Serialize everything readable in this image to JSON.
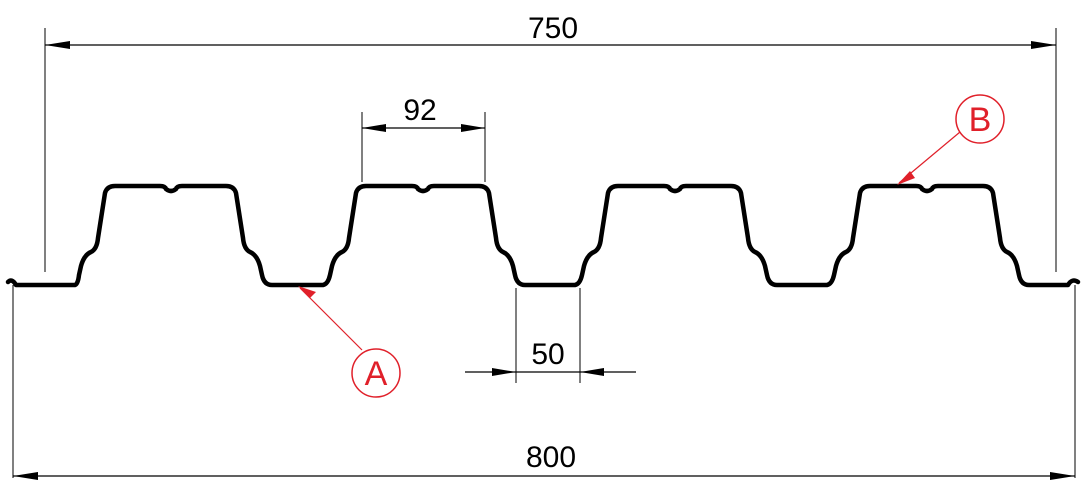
{
  "dimensions": {
    "top_width": "750",
    "total_width": "800",
    "rib_top": "92",
    "trough": "50"
  },
  "callouts": {
    "a": "A",
    "b": "B"
  },
  "colors": {
    "line": "#000000",
    "callout": "#e0202a"
  }
}
